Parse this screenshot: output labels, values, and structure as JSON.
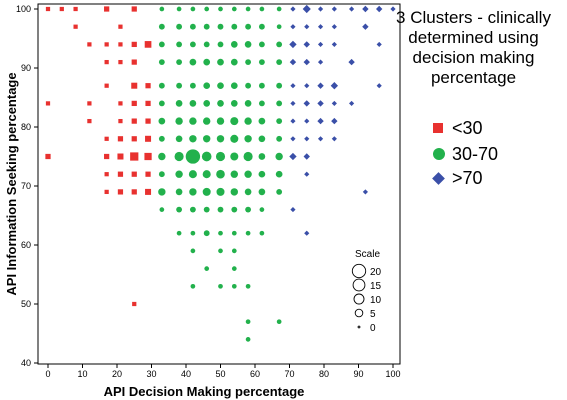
{
  "chart_data": {
    "type": "scatter",
    "xlabel": "API Decision Making percentage",
    "ylabel": "API Information Seeking percentage",
    "xlim": [
      0,
      100
    ],
    "ylim": [
      40,
      100
    ],
    "xticks": [
      0,
      10,
      20,
      30,
      40,
      50,
      60,
      70,
      80,
      90,
      100
    ],
    "yticks": [
      40,
      50,
      60,
      70,
      80,
      90,
      100
    ],
    "grid": false,
    "legend": {
      "title": "3 Clusters - clinically determined using decision making percentage",
      "position": "right",
      "entries": [
        {
          "label": "<30",
          "marker": "square",
          "color": "#e8312f"
        },
        {
          "label": "30-70",
          "marker": "circle",
          "color": "#22b14c"
        },
        {
          "label": ">70",
          "marker": "diamond",
          "color": "#3a4fa8"
        }
      ]
    },
    "size_legend": {
      "title": "Scale",
      "values": [
        20,
        15,
        10,
        5,
        0
      ]
    },
    "series": [
      {
        "name": "<30",
        "marker": "square",
        "color": "#e8312f",
        "points": [
          [
            0,
            100,
            1
          ],
          [
            4,
            100,
            1
          ],
          [
            8,
            100,
            1
          ],
          [
            17,
            100,
            2
          ],
          [
            25,
            100,
            2
          ],
          [
            8,
            97,
            1
          ],
          [
            21,
            97,
            1
          ],
          [
            0,
            84,
            1
          ],
          [
            0,
            75,
            2
          ],
          [
            12,
            94,
            1
          ],
          [
            17,
            94,
            1
          ],
          [
            21,
            94,
            1
          ],
          [
            25,
            94,
            2
          ],
          [
            29,
            94,
            4
          ],
          [
            17,
            91,
            1
          ],
          [
            21,
            91,
            1
          ],
          [
            25,
            91,
            2
          ],
          [
            17,
            87,
            1
          ],
          [
            25,
            87,
            3
          ],
          [
            29,
            87,
            2
          ],
          [
            12,
            84,
            1
          ],
          [
            21,
            84,
            1
          ],
          [
            25,
            84,
            2
          ],
          [
            29,
            84,
            2
          ],
          [
            12,
            81,
            1
          ],
          [
            21,
            81,
            1
          ],
          [
            25,
            81,
            2
          ],
          [
            29,
            81,
            2
          ],
          [
            17,
            78,
            1
          ],
          [
            21,
            78,
            2
          ],
          [
            25,
            78,
            2
          ],
          [
            29,
            78,
            3
          ],
          [
            17,
            75,
            2
          ],
          [
            21,
            75,
            3
          ],
          [
            25,
            75,
            7
          ],
          [
            29,
            75,
            5
          ],
          [
            17,
            72,
            1
          ],
          [
            21,
            72,
            2
          ],
          [
            25,
            72,
            2
          ],
          [
            29,
            72,
            2
          ],
          [
            17,
            69,
            1
          ],
          [
            21,
            69,
            2
          ],
          [
            25,
            69,
            2
          ],
          [
            29,
            69,
            3
          ],
          [
            25,
            50,
            1
          ]
        ]
      },
      {
        "name": "30-70",
        "marker": "circle",
        "color": "#22b14c",
        "points": [
          [
            33,
            100,
            1
          ],
          [
            38,
            100,
            1
          ],
          [
            42,
            100,
            1
          ],
          [
            46,
            100,
            1
          ],
          [
            50,
            100,
            1
          ],
          [
            54,
            100,
            1
          ],
          [
            58,
            100,
            1
          ],
          [
            62,
            100,
            1
          ],
          [
            67,
            100,
            1
          ],
          [
            33,
            97,
            2
          ],
          [
            38,
            97,
            2
          ],
          [
            42,
            97,
            2
          ],
          [
            46,
            97,
            2
          ],
          [
            50,
            97,
            2
          ],
          [
            54,
            97,
            2
          ],
          [
            58,
            97,
            2
          ],
          [
            62,
            97,
            2
          ],
          [
            67,
            97,
            1
          ],
          [
            33,
            94,
            2
          ],
          [
            38,
            94,
            2
          ],
          [
            42,
            94,
            2
          ],
          [
            46,
            94,
            2
          ],
          [
            50,
            94,
            2
          ],
          [
            54,
            94,
            3
          ],
          [
            58,
            94,
            3
          ],
          [
            62,
            94,
            2
          ],
          [
            67,
            94,
            2
          ],
          [
            33,
            91,
            2
          ],
          [
            38,
            91,
            2
          ],
          [
            42,
            91,
            3
          ],
          [
            46,
            91,
            3
          ],
          [
            50,
            91,
            3
          ],
          [
            54,
            91,
            3
          ],
          [
            58,
            91,
            2
          ],
          [
            62,
            91,
            2
          ],
          [
            67,
            91,
            2
          ],
          [
            33,
            87,
            2
          ],
          [
            38,
            87,
            2
          ],
          [
            42,
            87,
            2
          ],
          [
            46,
            87,
            3
          ],
          [
            50,
            87,
            3
          ],
          [
            54,
            87,
            3
          ],
          [
            58,
            87,
            2
          ],
          [
            62,
            87,
            2
          ],
          [
            67,
            87,
            2
          ],
          [
            33,
            84,
            2
          ],
          [
            38,
            84,
            3
          ],
          [
            42,
            84,
            3
          ],
          [
            46,
            84,
            3
          ],
          [
            50,
            84,
            3
          ],
          [
            54,
            84,
            3
          ],
          [
            58,
            84,
            3
          ],
          [
            62,
            84,
            2
          ],
          [
            67,
            84,
            2
          ],
          [
            33,
            81,
            3
          ],
          [
            38,
            81,
            4
          ],
          [
            42,
            81,
            4
          ],
          [
            46,
            81,
            4
          ],
          [
            50,
            81,
            4
          ],
          [
            54,
            81,
            5
          ],
          [
            58,
            81,
            4
          ],
          [
            62,
            81,
            3
          ],
          [
            67,
            81,
            2
          ],
          [
            33,
            78,
            2
          ],
          [
            38,
            78,
            3
          ],
          [
            42,
            78,
            4
          ],
          [
            46,
            78,
            4
          ],
          [
            50,
            78,
            4
          ],
          [
            54,
            78,
            5
          ],
          [
            58,
            78,
            4
          ],
          [
            62,
            78,
            3
          ],
          [
            67,
            78,
            2
          ],
          [
            33,
            75,
            4
          ],
          [
            38,
            75,
            7
          ],
          [
            42,
            75,
            21
          ],
          [
            46,
            75,
            8
          ],
          [
            50,
            75,
            7
          ],
          [
            54,
            75,
            5
          ],
          [
            58,
            75,
            7
          ],
          [
            62,
            75,
            3
          ],
          [
            67,
            75,
            4
          ],
          [
            33,
            72,
            2
          ],
          [
            38,
            72,
            4
          ],
          [
            42,
            72,
            5
          ],
          [
            46,
            72,
            5
          ],
          [
            50,
            72,
            6
          ],
          [
            54,
            72,
            4
          ],
          [
            58,
            72,
            4
          ],
          [
            62,
            72,
            3
          ],
          [
            67,
            72,
            3
          ],
          [
            33,
            69,
            4
          ],
          [
            38,
            69,
            3
          ],
          [
            42,
            69,
            4
          ],
          [
            46,
            69,
            5
          ],
          [
            50,
            69,
            5
          ],
          [
            54,
            69,
            4
          ],
          [
            58,
            69,
            3
          ],
          [
            62,
            69,
            3
          ],
          [
            67,
            69,
            2
          ],
          [
            33,
            66,
            1
          ],
          [
            38,
            66,
            2
          ],
          [
            42,
            66,
            2
          ],
          [
            46,
            66,
            2
          ],
          [
            50,
            66,
            2
          ],
          [
            54,
            66,
            2
          ],
          [
            58,
            66,
            2
          ],
          [
            62,
            66,
            1
          ],
          [
            38,
            62,
            1
          ],
          [
            42,
            62,
            1
          ],
          [
            46,
            62,
            2
          ],
          [
            50,
            62,
            1
          ],
          [
            54,
            62,
            1
          ],
          [
            58,
            62,
            1
          ],
          [
            62,
            62,
            1
          ],
          [
            42,
            59,
            1
          ],
          [
            50,
            59,
            1
          ],
          [
            54,
            59,
            1
          ],
          [
            46,
            56,
            1
          ],
          [
            54,
            56,
            1
          ],
          [
            42,
            53,
            1
          ],
          [
            50,
            53,
            1
          ],
          [
            54,
            53,
            1
          ],
          [
            58,
            53,
            1
          ],
          [
            58,
            47,
            1
          ],
          [
            67,
            47,
            1
          ],
          [
            58,
            44,
            1
          ]
        ]
      },
      {
        "name": ">70",
        "marker": "diamond",
        "color": "#3a4fa8",
        "points": [
          [
            71,
            100,
            1
          ],
          [
            75,
            100,
            4
          ],
          [
            79,
            100,
            1
          ],
          [
            83,
            100,
            1
          ],
          [
            88,
            100,
            1
          ],
          [
            92,
            100,
            2
          ],
          [
            96,
            100,
            2
          ],
          [
            100,
            100,
            1
          ],
          [
            71,
            97,
            1
          ],
          [
            75,
            97,
            1
          ],
          [
            79,
            97,
            1
          ],
          [
            83,
            97,
            1
          ],
          [
            92,
            97,
            2
          ],
          [
            71,
            94,
            3
          ],
          [
            75,
            94,
            2
          ],
          [
            79,
            94,
            1
          ],
          [
            83,
            94,
            1
          ],
          [
            96,
            94,
            1
          ],
          [
            71,
            91,
            2
          ],
          [
            75,
            91,
            2
          ],
          [
            79,
            91,
            1
          ],
          [
            88,
            91,
            2
          ],
          [
            71,
            87,
            1
          ],
          [
            75,
            87,
            1
          ],
          [
            79,
            87,
            2
          ],
          [
            83,
            87,
            3
          ],
          [
            96,
            87,
            1
          ],
          [
            71,
            84,
            1
          ],
          [
            75,
            84,
            2
          ],
          [
            79,
            84,
            2
          ],
          [
            83,
            84,
            1
          ],
          [
            88,
            84,
            1
          ],
          [
            71,
            81,
            1
          ],
          [
            75,
            81,
            1
          ],
          [
            79,
            81,
            2
          ],
          [
            83,
            81,
            2
          ],
          [
            71,
            78,
            1
          ],
          [
            75,
            78,
            1
          ],
          [
            79,
            78,
            1
          ],
          [
            83,
            78,
            1
          ],
          [
            71,
            75,
            3
          ],
          [
            75,
            75,
            2
          ],
          [
            75,
            72,
            1
          ],
          [
            92,
            69,
            1
          ],
          [
            71,
            66,
            1
          ],
          [
            75,
            62,
            1
          ]
        ]
      }
    ]
  }
}
